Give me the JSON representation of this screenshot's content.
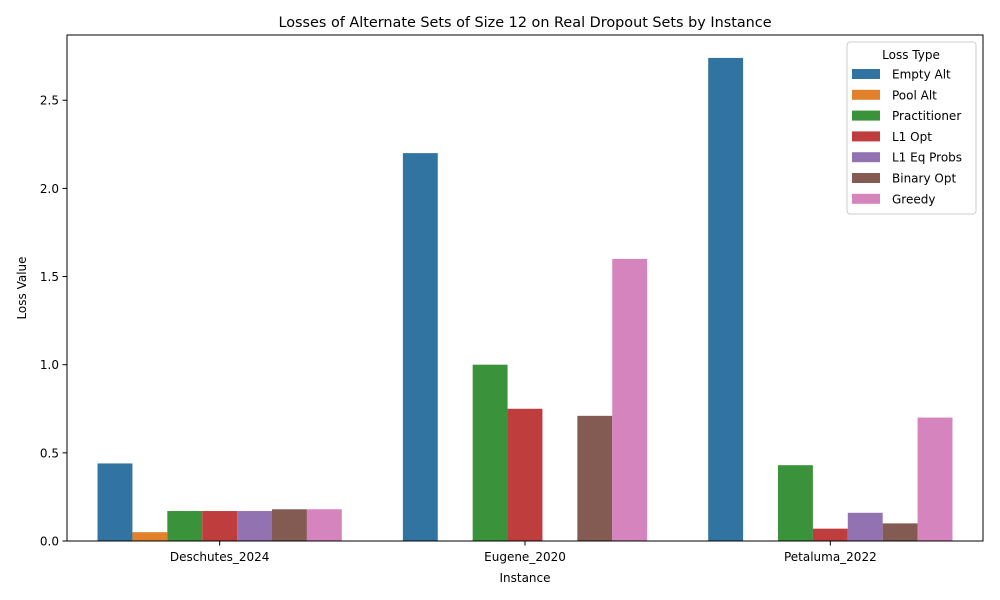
{
  "chart_data": {
    "type": "bar",
    "title": "Losses of Alternate Sets of Size 12 on Real Dropout Sets by Instance",
    "xlabel": "Instance",
    "ylabel": "Loss Value",
    "categories": [
      "Deschutes_2024",
      "Eugene_2020",
      "Petaluma_2022"
    ],
    "ylim": [
      0,
      2.87
    ],
    "yticks": [
      0.0,
      0.5,
      1.0,
      1.5,
      2.0,
      2.5
    ],
    "ytick_labels": [
      "0.0",
      "0.5",
      "1.0",
      "1.5",
      "2.0",
      "2.5"
    ],
    "grid": false,
    "legend": {
      "title": "Loss Type",
      "position": "top-right"
    },
    "series": [
      {
        "name": "Empty Alt",
        "color": "#3274a1",
        "values": [
          0.44,
          2.2,
          2.74
        ]
      },
      {
        "name": "Pool Alt",
        "color": "#e1812c",
        "values": [
          0.05,
          0.0,
          0.0
        ]
      },
      {
        "name": "Practitioner",
        "color": "#3a923a",
        "values": [
          0.17,
          1.0,
          0.43
        ]
      },
      {
        "name": "L1 Opt",
        "color": "#c03d3e",
        "values": [
          0.17,
          0.75,
          0.07
        ]
      },
      {
        "name": "L1 Eq Probs",
        "color": "#9372b2",
        "values": [
          0.17,
          0.0,
          0.16
        ]
      },
      {
        "name": "Binary Opt",
        "color": "#845b53",
        "values": [
          0.18,
          0.71,
          0.1
        ]
      },
      {
        "name": "Greedy",
        "color": "#d684bd",
        "values": [
          0.18,
          1.6,
          0.7
        ]
      }
    ]
  }
}
